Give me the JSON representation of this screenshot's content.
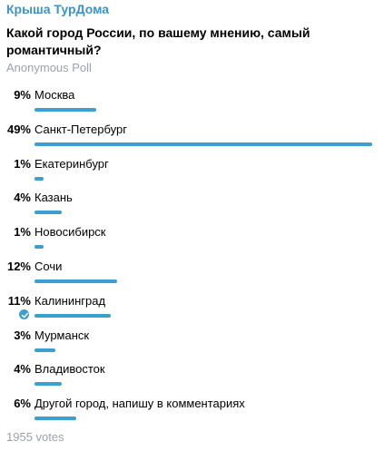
{
  "header": {
    "channel_name": "Крыша ТурДома",
    "question": "Какой город России, по вашему мнению, самый романтичный?",
    "poll_type": "Anonymous Poll"
  },
  "accent_color": "#3a9fd1",
  "options": [
    {
      "percent": "9%",
      "label": "Москва",
      "fraction": 0.09,
      "selected": false
    },
    {
      "percent": "49%",
      "label": "Санкт-Петербург",
      "fraction": 0.49,
      "selected": false
    },
    {
      "percent": "1%",
      "label": "Екатеринбург",
      "fraction": 0.01,
      "selected": false
    },
    {
      "percent": "4%",
      "label": "Казань",
      "fraction": 0.04,
      "selected": false
    },
    {
      "percent": "1%",
      "label": "Новосибирск",
      "fraction": 0.01,
      "selected": false
    },
    {
      "percent": "12%",
      "label": "Сочи",
      "fraction": 0.12,
      "selected": false
    },
    {
      "percent": "11%",
      "label": "Калининград",
      "fraction": 0.11,
      "selected": true
    },
    {
      "percent": "3%",
      "label": "Мурманск",
      "fraction": 0.03,
      "selected": false
    },
    {
      "percent": "4%",
      "label": "Владивосток",
      "fraction": 0.04,
      "selected": false
    },
    {
      "percent": "6%",
      "label": "Другой город, напишу в комментариях",
      "fraction": 0.06,
      "selected": false
    }
  ],
  "footer": {
    "votes": "1955 votes"
  }
}
